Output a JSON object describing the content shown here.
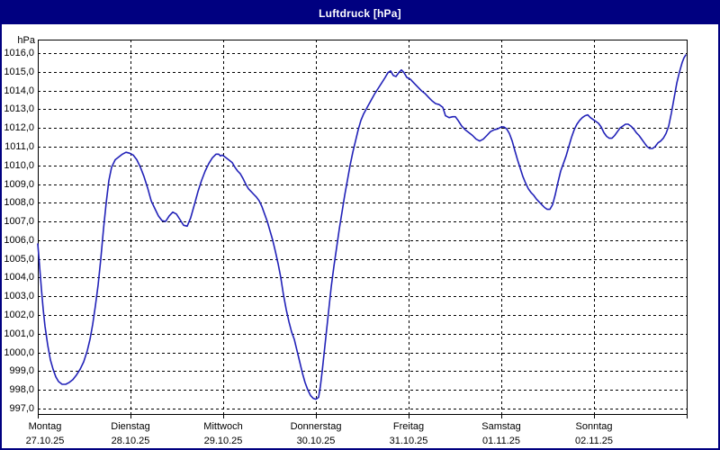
{
  "window": {
    "title": "Luftdruck [hPa]"
  },
  "colors": {
    "titlebar_bg": "#000080",
    "titlebar_text": "#ffffff",
    "window_border": "#000080",
    "plot_border": "#000000",
    "grid": "#000000",
    "line": "#2222b8",
    "background": "#ffffff",
    "text": "#000000"
  },
  "chart_data": {
    "type": "line",
    "title": "Luftdruck [hPa]",
    "ylabel": "hPa",
    "ylim": [
      997,
      1016
    ],
    "ytick_step": 1.0,
    "decimal_separator": ",",
    "grid": true,
    "legend": "none",
    "ytick_labels": [
      "1016,0",
      "1015,0",
      "1014,0",
      "1013,0",
      "1012,0",
      "1011,0",
      "1010,0",
      "1009,0",
      "1008,0",
      "1007,0",
      "1006,0",
      "1005,0",
      "1004,0",
      "1003,0",
      "1002,0",
      "1001,0",
      "1000,0",
      "999,0",
      "998,0",
      "997,0"
    ],
    "x_axis": {
      "unit": "day",
      "days": [
        {
          "name": "Montag",
          "date": "27.10.25"
        },
        {
          "name": "Dienstag",
          "date": "28.10.25"
        },
        {
          "name": "Mittwoch",
          "date": "29.10.25"
        },
        {
          "name": "Donnerstag",
          "date": "30.10.25"
        },
        {
          "name": "Freitag",
          "date": "31.10.25"
        },
        {
          "name": "Samstag",
          "date": "01.11.25"
        },
        {
          "name": "Sonntag",
          "date": "02.11.25"
        }
      ]
    },
    "series": [
      {
        "name": "Luftdruck",
        "unit": "hPa",
        "color": "#2222b8",
        "points_day_value": [
          [
            0,
            1005.8
          ],
          [
            0.019,
            1004.6
          ],
          [
            0.039,
            1003.4
          ],
          [
            0.058,
            1002.3
          ],
          [
            0.078,
            1001.4
          ],
          [
            0.107,
            1000.4
          ],
          [
            0.136,
            999.6
          ],
          [
            0.165,
            999.1
          ],
          [
            0.194,
            998.7
          ],
          [
            0.223,
            998.45
          ],
          [
            0.262,
            998.3
          ],
          [
            0.301,
            998.3
          ],
          [
            0.34,
            998.4
          ],
          [
            0.379,
            998.55
          ],
          [
            0.417,
            998.8
          ],
          [
            0.456,
            999.1
          ],
          [
            0.495,
            999.5
          ],
          [
            0.534,
            1000.1
          ],
          [
            0.563,
            1000.7
          ],
          [
            0.592,
            1001.5
          ],
          [
            0.621,
            1002.5
          ],
          [
            0.65,
            1003.6
          ],
          [
            0.68,
            1005.0
          ],
          [
            0.709,
            1006.6
          ],
          [
            0.738,
            1008.0
          ],
          [
            0.767,
            1009.2
          ],
          [
            0.796,
            1009.9
          ],
          [
            0.835,
            1010.3
          ],
          [
            0.874,
            1010.45
          ],
          [
            0.913,
            1010.6
          ],
          [
            0.951,
            1010.7
          ],
          [
            0.99,
            1010.65
          ],
          [
            1.029,
            1010.55
          ],
          [
            1.068,
            1010.3
          ],
          [
            1.107,
            1009.9
          ],
          [
            1.146,
            1009.4
          ],
          [
            1.184,
            1008.8
          ],
          [
            1.223,
            1008.1
          ],
          [
            1.262,
            1007.7
          ],
          [
            1.301,
            1007.3
          ],
          [
            1.34,
            1007.05
          ],
          [
            1.379,
            1007.0
          ],
          [
            1.417,
            1007.3
          ],
          [
            1.456,
            1007.5
          ],
          [
            1.495,
            1007.4
          ],
          [
            1.534,
            1007.1
          ],
          [
            1.573,
            1006.8
          ],
          [
            1.612,
            1006.75
          ],
          [
            1.65,
            1007.2
          ],
          [
            1.689,
            1007.9
          ],
          [
            1.728,
            1008.6
          ],
          [
            1.767,
            1009.2
          ],
          [
            1.806,
            1009.7
          ],
          [
            1.845,
            1010.1
          ],
          [
            1.883,
            1010.4
          ],
          [
            1.922,
            1010.6
          ],
          [
            1.951,
            1010.6
          ],
          [
            1.971,
            1010.5
          ],
          [
            1.99,
            1010.55
          ],
          [
            2.019,
            1010.45
          ],
          [
            2.058,
            1010.3
          ],
          [
            2.097,
            1010.15
          ],
          [
            2.126,
            1009.9
          ],
          [
            2.155,
            1009.7
          ],
          [
            2.184,
            1009.55
          ],
          [
            2.214,
            1009.3
          ],
          [
            2.243,
            1009.0
          ],
          [
            2.272,
            1008.75
          ],
          [
            2.301,
            1008.6
          ],
          [
            2.33,
            1008.45
          ],
          [
            2.359,
            1008.3
          ],
          [
            2.388,
            1008.1
          ],
          [
            2.417,
            1007.8
          ],
          [
            2.447,
            1007.4
          ],
          [
            2.476,
            1007.0
          ],
          [
            2.505,
            1006.5
          ],
          [
            2.534,
            1006.0
          ],
          [
            2.563,
            1005.4
          ],
          [
            2.592,
            1004.75
          ],
          [
            2.621,
            1004.0
          ],
          [
            2.65,
            1003.1
          ],
          [
            2.68,
            1002.3
          ],
          [
            2.709,
            1001.65
          ],
          [
            2.738,
            1001.1
          ],
          [
            2.767,
            1000.7
          ],
          [
            2.796,
            1000.1
          ],
          [
            2.825,
            999.5
          ],
          [
            2.854,
            998.9
          ],
          [
            2.883,
            998.4
          ],
          [
            2.913,
            998.0
          ],
          [
            2.942,
            997.7
          ],
          [
            2.971,
            997.55
          ],
          [
            3.0,
            997.5
          ],
          [
            3.029,
            997.6
          ],
          [
            3.049,
            998.2
          ],
          [
            3.068,
            999.0
          ],
          [
            3.087,
            999.9
          ],
          [
            3.107,
            1000.8
          ],
          [
            3.126,
            1001.7
          ],
          [
            3.146,
            1002.6
          ],
          [
            3.165,
            1003.5
          ],
          [
            3.194,
            1004.6
          ],
          [
            3.223,
            1005.6
          ],
          [
            3.252,
            1006.6
          ],
          [
            3.282,
            1007.5
          ],
          [
            3.311,
            1008.4
          ],
          [
            3.34,
            1009.2
          ],
          [
            3.369,
            1010.0
          ],
          [
            3.398,
            1010.7
          ],
          [
            3.427,
            1011.3
          ],
          [
            3.456,
            1011.9
          ],
          [
            3.485,
            1012.4
          ],
          [
            3.515,
            1012.75
          ],
          [
            3.553,
            1013.1
          ],
          [
            3.592,
            1013.45
          ],
          [
            3.631,
            1013.8
          ],
          [
            3.67,
            1014.1
          ],
          [
            3.709,
            1014.4
          ],
          [
            3.748,
            1014.7
          ],
          [
            3.777,
            1014.95
          ],
          [
            3.806,
            1015.05
          ],
          [
            3.835,
            1014.8
          ],
          [
            3.864,
            1014.75
          ],
          [
            3.893,
            1014.95
          ],
          [
            3.922,
            1015.1
          ],
          [
            3.951,
            1014.95
          ],
          [
            3.981,
            1014.7
          ],
          [
            4.019,
            1014.6
          ],
          [
            4.058,
            1014.4
          ],
          [
            4.097,
            1014.2
          ],
          [
            4.136,
            1014.0
          ],
          [
            4.175,
            1013.85
          ],
          [
            4.214,
            1013.65
          ],
          [
            4.252,
            1013.45
          ],
          [
            4.291,
            1013.3
          ],
          [
            4.33,
            1013.25
          ],
          [
            4.369,
            1013.1
          ],
          [
            4.398,
            1012.65
          ],
          [
            4.437,
            1012.55
          ],
          [
            4.476,
            1012.6
          ],
          [
            4.505,
            1012.6
          ],
          [
            4.534,
            1012.4
          ],
          [
            4.573,
            1012.1
          ],
          [
            4.612,
            1011.9
          ],
          [
            4.65,
            1011.75
          ],
          [
            4.689,
            1011.6
          ],
          [
            4.728,
            1011.4
          ],
          [
            4.767,
            1011.3
          ],
          [
            4.806,
            1011.4
          ],
          [
            4.845,
            1011.6
          ],
          [
            4.883,
            1011.8
          ],
          [
            4.922,
            1011.9
          ],
          [
            4.961,
            1011.95
          ],
          [
            5.0,
            1012.05
          ],
          [
            5.029,
            1012.05
          ],
          [
            5.058,
            1011.95
          ],
          [
            5.087,
            1011.7
          ],
          [
            5.117,
            1011.3
          ],
          [
            5.146,
            1010.8
          ],
          [
            5.175,
            1010.3
          ],
          [
            5.204,
            1009.85
          ],
          [
            5.233,
            1009.4
          ],
          [
            5.262,
            1009.05
          ],
          [
            5.291,
            1008.75
          ],
          [
            5.32,
            1008.55
          ],
          [
            5.35,
            1008.4
          ],
          [
            5.379,
            1008.2
          ],
          [
            5.408,
            1008.05
          ],
          [
            5.437,
            1007.9
          ],
          [
            5.466,
            1007.75
          ],
          [
            5.495,
            1007.65
          ],
          [
            5.524,
            1007.65
          ],
          [
            5.553,
            1007.9
          ],
          [
            5.583,
            1008.45
          ],
          [
            5.612,
            1009.1
          ],
          [
            5.641,
            1009.7
          ],
          [
            5.67,
            1010.1
          ],
          [
            5.699,
            1010.5
          ],
          [
            5.728,
            1011.0
          ],
          [
            5.757,
            1011.5
          ],
          [
            5.786,
            1011.9
          ],
          [
            5.816,
            1012.2
          ],
          [
            5.845,
            1012.4
          ],
          [
            5.874,
            1012.55
          ],
          [
            5.903,
            1012.65
          ],
          [
            5.932,
            1012.7
          ],
          [
            5.961,
            1012.55
          ],
          [
            5.99,
            1012.45
          ],
          [
            6.019,
            1012.35
          ],
          [
            6.049,
            1012.25
          ],
          [
            6.078,
            1012.05
          ],
          [
            6.107,
            1011.75
          ],
          [
            6.136,
            1011.55
          ],
          [
            6.165,
            1011.45
          ],
          [
            6.194,
            1011.45
          ],
          [
            6.223,
            1011.6
          ],
          [
            6.252,
            1011.8
          ],
          [
            6.282,
            1012.0
          ],
          [
            6.311,
            1012.1
          ],
          [
            6.34,
            1012.2
          ],
          [
            6.369,
            1012.2
          ],
          [
            6.398,
            1012.1
          ],
          [
            6.427,
            1011.95
          ],
          [
            6.456,
            1011.75
          ],
          [
            6.485,
            1011.6
          ],
          [
            6.515,
            1011.4
          ],
          [
            6.544,
            1011.2
          ],
          [
            6.573,
            1011.0
          ],
          [
            6.602,
            1010.9
          ],
          [
            6.631,
            1010.9
          ],
          [
            6.66,
            1011.0
          ],
          [
            6.689,
            1011.2
          ],
          [
            6.719,
            1011.3
          ],
          [
            6.748,
            1011.45
          ],
          [
            6.777,
            1011.7
          ],
          [
            6.806,
            1012.1
          ],
          [
            6.835,
            1012.8
          ],
          [
            6.864,
            1013.6
          ],
          [
            6.893,
            1014.4
          ],
          [
            6.922,
            1015.0
          ],
          [
            6.951,
            1015.5
          ],
          [
            6.971,
            1015.75
          ],
          [
            6.99,
            1015.9
          ]
        ]
      }
    ]
  }
}
